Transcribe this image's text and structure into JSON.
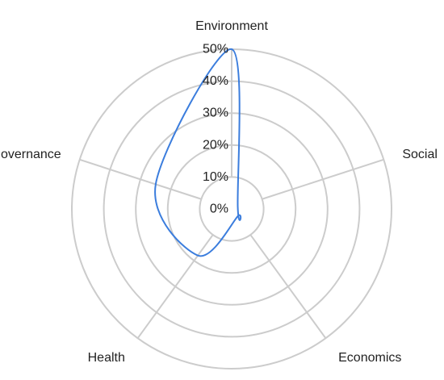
{
  "chart_data": {
    "type": "radar",
    "categories": [
      "Environment",
      "Social",
      "Economics",
      "Health",
      "Governance"
    ],
    "series": [
      {
        "values": [
          50,
          2,
          3,
          18,
          25
        ]
      }
    ],
    "rlim": [
      0,
      50
    ],
    "ticks": [
      "0%",
      "10%",
      "20%",
      "30%",
      "40%",
      "50%"
    ],
    "grid": true,
    "smooth": true,
    "colors": {
      "series": "#3b7ddd",
      "grid": "#cccccc",
      "text": "#222222"
    }
  }
}
